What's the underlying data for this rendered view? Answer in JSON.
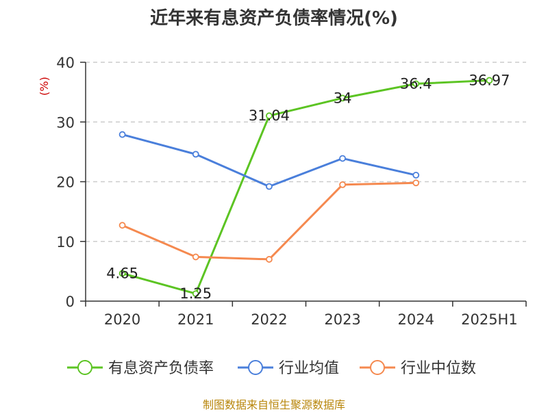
{
  "chart_data": {
    "type": "line",
    "title": "近年来有息资产负债率情况(%)",
    "ylabel": "(%)",
    "categories": [
      "2020",
      "2021",
      "2022",
      "2023",
      "2024",
      "2025H1"
    ],
    "ylim": [
      0,
      40
    ],
    "yticks": [
      "0",
      "10",
      "20",
      "30",
      "40"
    ],
    "grid": true,
    "legend_position": "bottom",
    "series": [
      {
        "name": "有息资产负债率",
        "color": "#5cc423",
        "values": [
          4.65,
          1.25,
          31.04,
          34,
          36.4,
          36.97
        ],
        "labels": [
          "4.65",
          "1.25",
          "31.04",
          "34",
          "36.4",
          "36.97"
        ]
      },
      {
        "name": "行业均值",
        "color": "#4a7fdb",
        "values": [
          27.9,
          24.6,
          19.2,
          23.9,
          21.1,
          null
        ],
        "labels": []
      },
      {
        "name": "行业中位数",
        "color": "#f5894f",
        "values": [
          12.7,
          7.4,
          7.0,
          19.5,
          19.8,
          null
        ],
        "labels": []
      }
    ]
  },
  "source_text": "制图数据来自恒生聚源数据库"
}
